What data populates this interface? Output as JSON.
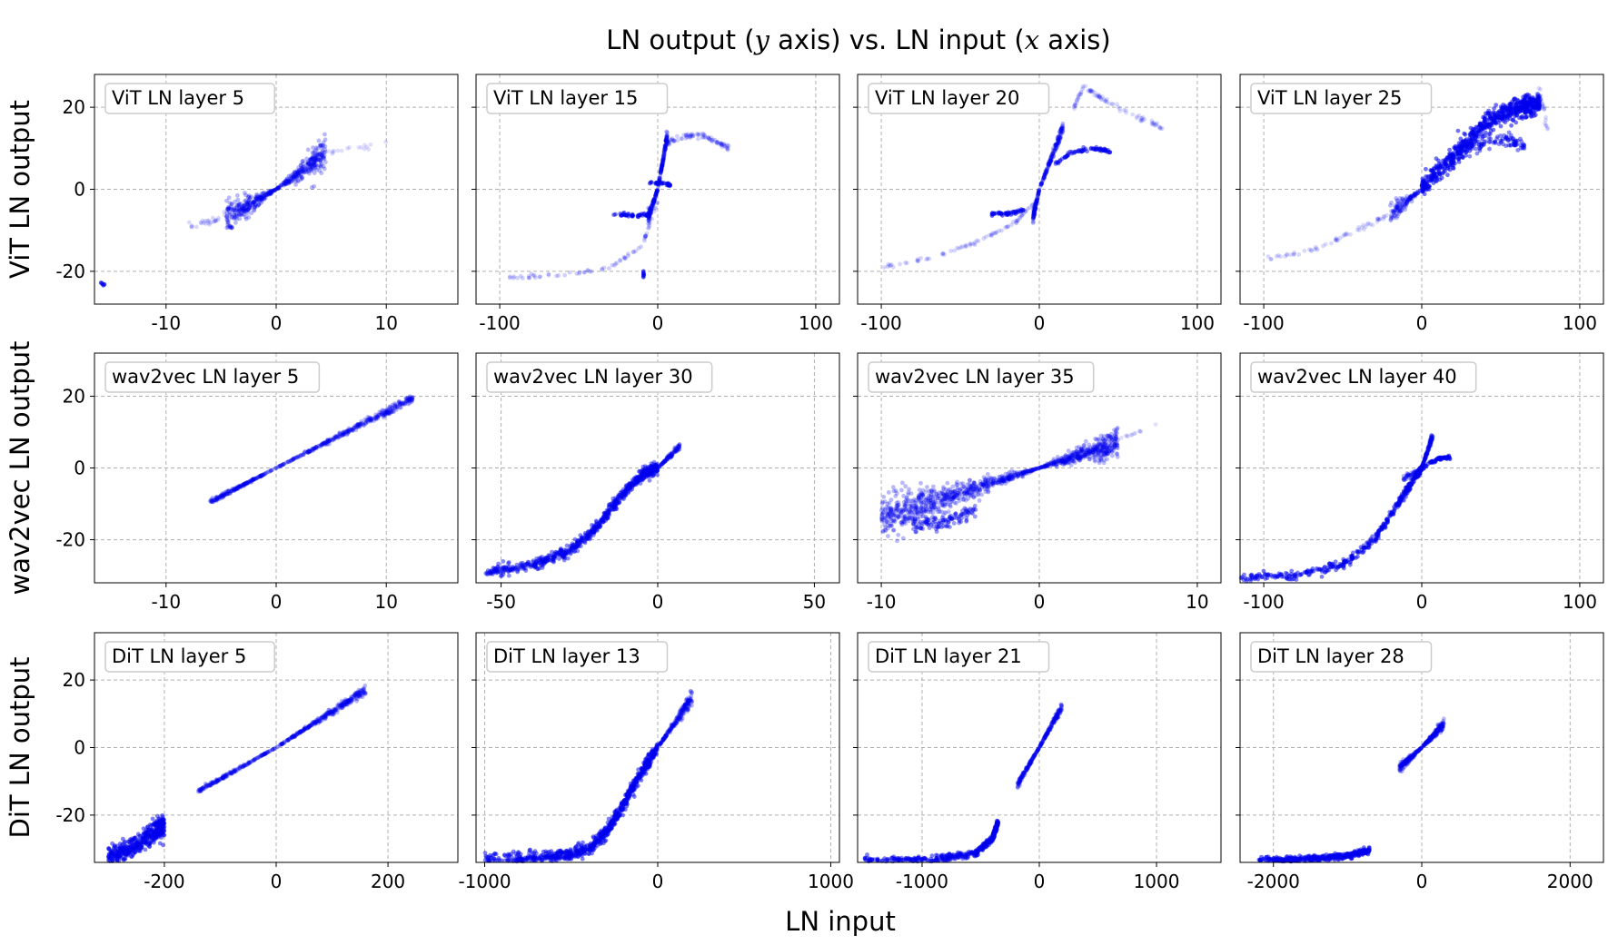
{
  "figure": {
    "title_prefix": "LN output (",
    "title_y": "y",
    "title_mid": " axis) vs. LN input (",
    "title_x": "x",
    "title_suffix": " axis)",
    "xlabel": "LN input",
    "point_color": "#0000ee"
  },
  "chart_data": [
    {
      "type": "scatter",
      "title": "ViT LN layer 5",
      "ylabel": "ViT LN output",
      "xlim": [
        -16.5,
        16.5
      ],
      "ylim": [
        -28,
        28
      ],
      "xticks": [
        -10,
        0,
        10
      ],
      "xtick_labels": [
        "-10",
        "0",
        "10"
      ],
      "yticks": [
        -20,
        0,
        20
      ],
      "ytick_labels": [
        "-20",
        "0",
        "20"
      ],
      "wedges": [
        {
          "x1": 4.5,
          "y1": 9,
          "spread": 4,
          "n": 260
        },
        {
          "x1": -4.5,
          "y1": -7,
          "spread": 4,
          "n": 260
        }
      ],
      "curves": [
        {
          "points": [
            [
              -8,
              -9
            ],
            [
              -6,
              -8
            ],
            [
              -4,
              -5
            ]
          ],
          "spread": 1.0,
          "n": 30,
          "alpha": 0.15
        },
        {
          "points": [
            [
              4,
              9
            ],
            [
              7,
              10
            ],
            [
              10,
              11
            ]
          ],
          "spread": 0.6,
          "n": 18,
          "alpha": 0.12
        }
      ],
      "points": [
        [
          -15.8,
          -23
        ],
        [
          -15.7,
          -23.4
        ],
        [
          -15.9,
          -22.8
        ],
        [
          -15.6,
          -23.2
        ]
      ]
    },
    {
      "type": "scatter",
      "title": "ViT LN layer 15",
      "ylabel": "",
      "xlim": [
        -115,
        115
      ],
      "ylim": [
        -28,
        28
      ],
      "xticks": [
        -100,
        0,
        100
      ],
      "xtick_labels": [
        "-100",
        "0",
        "100"
      ],
      "yticks": [
        -20,
        0,
        20
      ],
      "ytick_labels": [
        "",
        "",
        ""
      ],
      "wedges": [
        {
          "x1": 6,
          "y1": 13,
          "spread": 1.6,
          "n": 130
        },
        {
          "x1": -6,
          "y1": -7,
          "spread": 1.6,
          "n": 110
        }
      ],
      "curves": [
        {
          "points": [
            [
              -95,
              -21.5
            ],
            [
              -60,
              -21
            ],
            [
              -30,
              -19
            ],
            [
              -10,
              -14
            ],
            [
              0,
              -3
            ]
          ],
          "spread": 0.5,
          "n": 70,
          "alpha": 0.18
        },
        {
          "points": [
            [
              5,
              11
            ],
            [
              15,
              13
            ],
            [
              30,
              13
            ],
            [
              45,
              10
            ]
          ],
          "spread": 0.7,
          "n": 90,
          "alpha": 0.18
        },
        {
          "points": [
            [
              -28,
              -6
            ],
            [
              -15,
              -6.5
            ],
            [
              -5,
              -6
            ]
          ],
          "spread": 0.4,
          "n": 40,
          "alpha": 0.55
        },
        {
          "points": [
            [
              -5,
              1.5
            ],
            [
              5,
              1.5
            ],
            [
              8,
              1
            ]
          ],
          "spread": 0.3,
          "n": 30,
          "alpha": 0.6
        }
      ],
      "points": [
        [
          -9,
          -20.5
        ],
        [
          -9,
          -21
        ],
        [
          -9,
          -20
        ],
        [
          -9,
          -21.4
        ],
        [
          -8.8,
          -20.8
        ]
      ]
    },
    {
      "type": "scatter",
      "title": "ViT LN layer 20",
      "ylabel": "",
      "xlim": [
        -115,
        115
      ],
      "ylim": [
        -28,
        28
      ],
      "xticks": [
        -100,
        0,
        100
      ],
      "xtick_labels": [
        "-100",
        "0",
        "100"
      ],
      "yticks": [
        -20,
        0,
        20
      ],
      "ytick_labels": [
        "",
        "",
        ""
      ],
      "wedges": [
        {
          "x1": 15,
          "y1": 15,
          "spread": 1.6,
          "n": 150
        },
        {
          "x1": -4,
          "y1": -7,
          "spread": 1.6,
          "n": 90
        }
      ],
      "curves": [
        {
          "points": [
            [
              -100,
              -19
            ],
            [
              -70,
              -17
            ],
            [
              -40,
              -13
            ],
            [
              -15,
              -8
            ],
            [
              0,
              -2
            ]
          ],
          "spread": 0.5,
          "n": 80,
          "alpha": 0.16
        },
        {
          "points": [
            [
              10,
              6
            ],
            [
              20,
              9
            ],
            [
              35,
              10
            ],
            [
              45,
              9
            ]
          ],
          "spread": 0.5,
          "n": 70,
          "alpha": 0.5
        },
        {
          "points": [
            [
              22,
              20
            ],
            [
              28,
              25
            ],
            [
              40,
              22
            ],
            [
              60,
              18
            ],
            [
              78,
              15
            ]
          ],
          "spread": 0.6,
          "n": 90,
          "alpha": 0.14
        },
        {
          "points": [
            [
              -30,
              -6
            ],
            [
              -20,
              -6
            ],
            [
              -10,
              -5
            ]
          ],
          "spread": 0.4,
          "n": 40,
          "alpha": 0.6
        }
      ],
      "points": []
    },
    {
      "type": "scatter",
      "title": "ViT LN layer 25",
      "ylabel": "",
      "xlim": [
        -115,
        115
      ],
      "ylim": [
        -28,
        28
      ],
      "xticks": [
        -100,
        0,
        100
      ],
      "xtick_labels": [
        "-100",
        "0",
        "100"
      ],
      "yticks": [
        -20,
        0,
        20
      ],
      "ytick_labels": [
        "",
        "",
        ""
      ],
      "wedges": [
        {
          "x1": -20,
          "y1": -6,
          "spread": 2.5,
          "n": 120
        }
      ],
      "curves": [
        {
          "points": [
            [
              0,
              0
            ],
            [
              20,
              8
            ],
            [
              40,
              16
            ],
            [
              60,
              20
            ],
            [
              75,
              21
            ]
          ],
          "spread": 2.6,
          "n": 650,
          "alpha": 0.55
        },
        {
          "points": [
            [
              30,
              10
            ],
            [
              50,
              12
            ],
            [
              65,
              11
            ]
          ],
          "spread": 1.6,
          "n": 90,
          "alpha": 0.45
        },
        {
          "points": [
            [
              -100,
              -17
            ],
            [
              -70,
              -15
            ],
            [
              -40,
              -10
            ],
            [
              -20,
              -6
            ]
          ],
          "spread": 0.6,
          "n": 60,
          "alpha": 0.15
        },
        {
          "points": [
            [
              60,
              19
            ],
            [
              75,
              23
            ],
            [
              80,
              14
            ]
          ],
          "spread": 1.5,
          "n": 40,
          "alpha": 0.14
        }
      ],
      "points": []
    },
    {
      "type": "scatter",
      "title": "wav2vec LN layer 5",
      "ylabel": "wav2vec LN output",
      "xlim": [
        -16.5,
        16.5
      ],
      "ylim": [
        -32,
        32
      ],
      "xticks": [
        -10,
        0,
        10
      ],
      "xtick_labels": [
        "-10",
        "0",
        "10"
      ],
      "yticks": [
        -20,
        0,
        20
      ],
      "ytick_labels": [
        "-20",
        "0",
        "20"
      ],
      "wedges": [
        {
          "x1": 12.5,
          "y1": 19.5,
          "spread": 1.4,
          "n": 330
        },
        {
          "x1": -6,
          "y1": -9.5,
          "spread": 0.8,
          "n": 180
        }
      ],
      "curves": [],
      "points": []
    },
    {
      "type": "scatter",
      "title": "wav2vec LN layer 30",
      "ylabel": "",
      "xlim": [
        -58,
        58
      ],
      "ylim": [
        -32,
        32
      ],
      "xticks": [
        -50,
        0,
        50
      ],
      "xtick_labels": [
        "-50",
        "0",
        "50"
      ],
      "yticks": [
        -20,
        0,
        20
      ],
      "ytick_labels": [
        "",
        "",
        ""
      ],
      "wedges": [
        {
          "x1": 7,
          "y1": 6,
          "spread": 1.0,
          "n": 100
        }
      ],
      "curves": [
        {
          "points": [
            [
              -55,
              -29
            ],
            [
              -40,
              -27
            ],
            [
              -28,
              -23
            ],
            [
              -20,
              -17
            ],
            [
              -12,
              -8
            ],
            [
              -5,
              -2
            ],
            [
              0,
              0
            ]
          ],
          "spread": 1.6,
          "n": 700,
          "alpha": 0.45
        }
      ],
      "points": []
    },
    {
      "type": "scatter",
      "title": "wav2vec LN layer 35",
      "ylabel": "",
      "xlim": [
        -11.5,
        11.5
      ],
      "ylim": [
        -32,
        32
      ],
      "xticks": [
        -10,
        0,
        10
      ],
      "xtick_labels": [
        "-10",
        "0",
        "10"
      ],
      "yticks": [
        -20,
        0,
        20
      ],
      "ytick_labels": [
        "",
        "",
        ""
      ],
      "wedges": [
        {
          "x1": 5,
          "y1": 7,
          "spread": 4,
          "n": 420
        },
        {
          "x1": -10,
          "y1": -14,
          "spread": 6,
          "n": 700
        }
      ],
      "curves": [
        {
          "points": [
            [
              -8,
              -16
            ],
            [
              -6,
              -15
            ],
            [
              -4,
              -12
            ]
          ],
          "spread": 2.2,
          "n": 120,
          "alpha": 0.4
        },
        {
          "points": [
            [
              5,
              8
            ],
            [
              7.5,
              12
            ]
          ],
          "spread": 0.6,
          "n": 12,
          "alpha": 0.12
        }
      ],
      "points": []
    },
    {
      "type": "scatter",
      "title": "wav2vec LN layer 40",
      "ylabel": "",
      "xlim": [
        -115,
        115
      ],
      "ylim": [
        -32,
        32
      ],
      "xticks": [
        -100,
        0,
        100
      ],
      "xtick_labels": [
        "-100",
        "0",
        "100"
      ],
      "yticks": [
        -20,
        0,
        20
      ],
      "ytick_labels": [
        "",
        "",
        ""
      ],
      "wedges": [
        {
          "x1": 7,
          "y1": 9,
          "spread": 1.4,
          "n": 110
        },
        {
          "x1": -12,
          "y1": -3,
          "spread": 1.0,
          "n": 40
        }
      ],
      "curves": [
        {
          "points": [
            [
              -115,
              -30.5
            ],
            [
              -80,
              -30
            ],
            [
              -50,
              -27
            ],
            [
              -30,
              -20
            ],
            [
              -15,
              -10
            ],
            [
              -5,
              -3
            ],
            [
              0,
              0
            ]
          ],
          "spread": 1.2,
          "n": 420,
          "alpha": 0.5
        },
        {
          "points": [
            [
              0,
              0
            ],
            [
              10,
              2.5
            ],
            [
              18,
              3
            ]
          ],
          "spread": 0.4,
          "n": 60,
          "alpha": 0.6
        }
      ],
      "points": []
    },
    {
      "type": "scatter",
      "title": "DiT LN layer 5",
      "ylabel": "DiT LN output",
      "xlim": [
        -325,
        325
      ],
      "ylim": [
        -34,
        34
      ],
      "xticks": [
        -200,
        0,
        200
      ],
      "xtick_labels": [
        "-200",
        "0",
        "200"
      ],
      "yticks": [
        -20,
        0,
        20
      ],
      "ytick_labels": [
        "-20",
        "0",
        "20"
      ],
      "wedges": [
        {
          "x1": 160,
          "y1": 17,
          "spread": 1.5,
          "n": 300
        },
        {
          "x1": -140,
          "y1": -13,
          "spread": 0.8,
          "n": 180
        }
      ],
      "curves": [
        {
          "points": [
            [
              -300,
              -33
            ],
            [
              -260,
              -30
            ],
            [
              -220,
              -25
            ],
            [
              -200,
              -23
            ]
          ],
          "spread": 3.2,
          "n": 450,
          "alpha": 0.5
        }
      ],
      "points": []
    },
    {
      "type": "scatter",
      "title": "DiT LN layer 13",
      "ylabel": "",
      "xlim": [
        -1050,
        1050
      ],
      "ylim": [
        -34,
        34
      ],
      "xticks": [
        -1000,
        0,
        1000
      ],
      "xtick_labels": [
        "-1000",
        "0",
        "1000"
      ],
      "yticks": [
        -20,
        0,
        20
      ],
      "ytick_labels": [
        "",
        "",
        ""
      ],
      "wedges": [
        {
          "x1": 200,
          "y1": 15,
          "spread": 2.2,
          "n": 200
        }
      ],
      "curves": [
        {
          "points": [
            [
              -1000,
              -33
            ],
            [
              -600,
              -32
            ],
            [
              -400,
              -30
            ],
            [
              -300,
              -25
            ],
            [
              -200,
              -17
            ],
            [
              -100,
              -8
            ],
            [
              0,
              0
            ]
          ],
          "spread": 2.0,
          "n": 700,
          "alpha": 0.5
        },
        {
          "points": [
            [
              -900,
              -33.5
            ],
            [
              -500,
              -32.5
            ]
          ],
          "spread": 0.8,
          "n": 120,
          "alpha": 0.35
        }
      ],
      "points": []
    },
    {
      "type": "scatter",
      "title": "DiT LN layer 21",
      "ylabel": "",
      "xlim": [
        -1550,
        1550
      ],
      "ylim": [
        -34,
        34
      ],
      "xticks": [
        -1000,
        0,
        1000
      ],
      "xtick_labels": [
        "-1000",
        "0",
        "1000"
      ],
      "yticks": [
        -20,
        0,
        20
      ],
      "ytick_labels": [
        "",
        "",
        ""
      ],
      "wedges": [
        {
          "x1": 190,
          "y1": 12,
          "spread": 1.4,
          "n": 150
        },
        {
          "x1": -190,
          "y1": -11,
          "spread": 1.2,
          "n": 130
        }
      ],
      "curves": [
        {
          "points": [
            [
              -1500,
              -33.5
            ],
            [
              -900,
              -33
            ],
            [
              -550,
              -31.5
            ],
            [
              -400,
              -27
            ],
            [
              -350,
              -22
            ]
          ],
          "spread": 1.0,
          "n": 420,
          "alpha": 0.5
        }
      ],
      "points": []
    },
    {
      "type": "scatter",
      "title": "DiT LN layer 28",
      "ylabel": "",
      "xlim": [
        -2450,
        2450
      ],
      "ylim": [
        -34,
        34
      ],
      "xticks": [
        -2000,
        0,
        2000
      ],
      "xtick_labels": [
        "-2000",
        "0",
        "2000"
      ],
      "yticks": [
        -20,
        0,
        20
      ],
      "ytick_labels": [
        "",
        "",
        ""
      ],
      "wedges": [
        {
          "x1": 300,
          "y1": 7,
          "spread": 1.6,
          "n": 180
        },
        {
          "x1": -300,
          "y1": -6,
          "spread": 1.5,
          "n": 150
        }
      ],
      "curves": [
        {
          "points": [
            [
              -2200,
              -33.5
            ],
            [
              -1500,
              -33
            ],
            [
              -1000,
              -32
            ],
            [
              -700,
              -30.5
            ]
          ],
          "spread": 0.9,
          "n": 380,
          "alpha": 0.55
        }
      ],
      "points": []
    }
  ]
}
